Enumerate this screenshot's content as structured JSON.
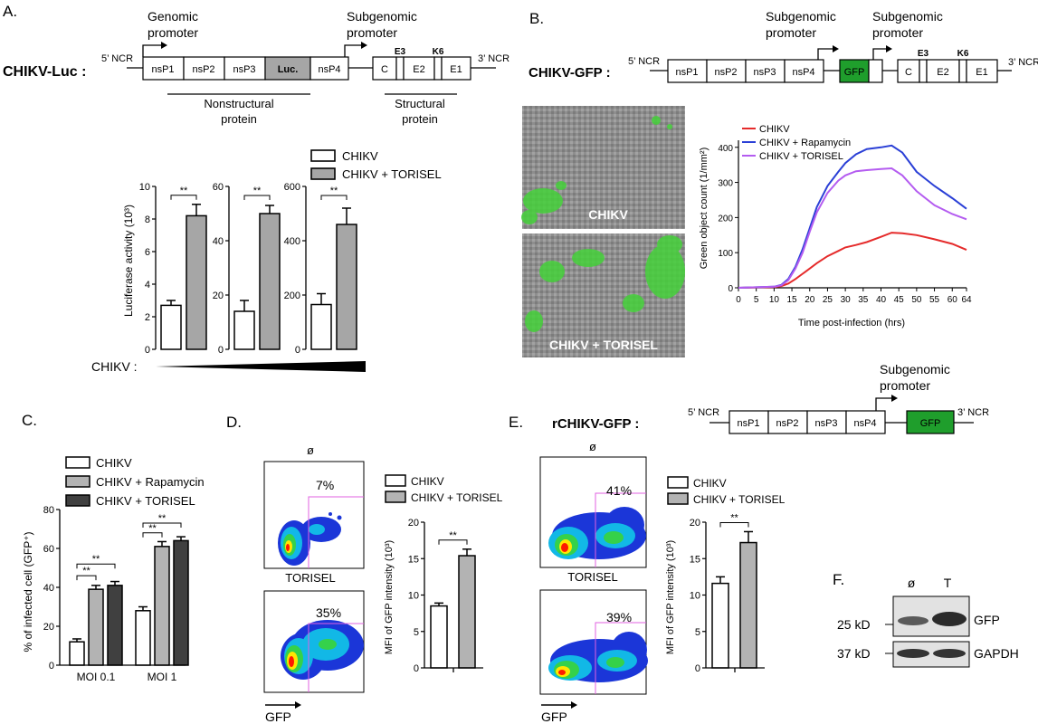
{
  "panels": {
    "A": {
      "letter": "A.",
      "construct": "CHIKV-Luc :",
      "ncr5": "5’ NCR",
      "ncr3": "3’ NCR",
      "genomic_promoter": [
        "Genomic",
        "promoter"
      ],
      "subgenomic_promoter": [
        "Subgenomic",
        "promoter"
      ],
      "ns_genes": [
        "nsP1",
        "nsP2",
        "nsP3",
        "Luc.",
        "nsP4"
      ],
      "s_genes": [
        "C",
        "E2",
        "E1"
      ],
      "s_top_labels": [
        "E3",
        "K6"
      ],
      "nonstructural_label": [
        "Nonstructural",
        "protein"
      ],
      "structural_label": [
        "Structural",
        "protein"
      ],
      "x_axis_label": "CHIKV :",
      "chart_data": {
        "type": "bar",
        "ylabel": "Luciferase activity (10³)",
        "legend": [
          "CHIKV",
          "CHIKV + TORISEL"
        ],
        "significance": "**",
        "subplots": [
          {
            "ylim": [
              0,
              10
            ],
            "ticks": [
              "0",
              "2",
              "4",
              "6",
              "8",
              "10"
            ],
            "values": [
              2.7,
              8.2
            ],
            "errors": [
              0.3,
              0.7
            ]
          },
          {
            "ylim": [
              0,
              60
            ],
            "ticks": [
              "0",
              "20",
              "40",
              "60"
            ],
            "values": [
              14,
              50
            ],
            "errors": [
              4,
              3
            ]
          },
          {
            "ylim": [
              0,
              600
            ],
            "ticks": [
              "0",
              "200",
              "400",
              "600"
            ],
            "values": [
              165,
              460
            ],
            "errors": [
              40,
              60
            ]
          }
        ]
      }
    },
    "B": {
      "letter": "B.",
      "construct": "CHIKV-GFP :",
      "ncr5": "5’ NCR",
      "ncr3": "3’ NCR",
      "promoter1": [
        "Subgenomic",
        "promoter"
      ],
      "promoter2": [
        "Subgenomic",
        "promoter"
      ],
      "ns_genes": [
        "nsP1",
        "nsP2",
        "nsP3",
        "nsP4"
      ],
      "gfp": "GFP",
      "s_genes": [
        "C",
        "E2",
        "E1"
      ],
      "s_top_labels": [
        "E3",
        "K6"
      ],
      "micro_top_label": "CHIKV",
      "micro_bottom_label": "CHIKV + TORISEL",
      "chart_data": {
        "type": "line",
        "xlabel": "Time post-infection (hrs)",
        "ylabel": "Green object count (1/mm²)",
        "xlim": [
          0,
          64
        ],
        "ylim": [
          0,
          420
        ],
        "xticks": [
          "0",
          "5",
          "10",
          "15",
          "20",
          "25",
          "30",
          "35",
          "40",
          "45",
          "50",
          "55",
          "60",
          "64"
        ],
        "yticks": [
          "0",
          "100",
          "200",
          "300",
          "400"
        ],
        "legend_position": "top-left",
        "series": [
          {
            "name": "CHIKV",
            "color": "#e52b2b",
            "x": [
              0,
              10,
              12,
              14,
              16,
              18,
              20,
              22,
              25,
              28,
              30,
              33,
              36,
              40,
              43,
              46,
              50,
              55,
              60,
              64
            ],
            "y": [
              0,
              2,
              5,
              12,
              25,
              40,
              55,
              70,
              90,
              105,
              115,
              122,
              130,
              145,
              157,
              155,
              150,
              138,
              125,
              108
            ]
          },
          {
            "name": "CHIKV + Rapamycin",
            "color": "#2a3fd6",
            "x": [
              0,
              10,
              12,
              14,
              16,
              18,
              20,
              22,
              25,
              28,
              30,
              33,
              36,
              40,
              43,
              46,
              50,
              55,
              60,
              64
            ],
            "y": [
              0,
              3,
              8,
              25,
              60,
              110,
              170,
              230,
              290,
              330,
              355,
              380,
              395,
              400,
              405,
              385,
              330,
              290,
              255,
              225
            ]
          },
          {
            "name": "CHIKV + TORISEL",
            "color": "#b45cf0",
            "x": [
              0,
              10,
              12,
              14,
              16,
              18,
              20,
              22,
              25,
              28,
              30,
              33,
              36,
              40,
              43,
              46,
              50,
              55,
              60,
              64
            ],
            "y": [
              0,
              3,
              7,
              22,
              55,
              100,
              160,
              215,
              270,
              305,
              320,
              332,
              335,
              338,
              340,
              320,
              275,
              235,
              210,
              195
            ]
          }
        ]
      }
    },
    "C": {
      "letter": "C.",
      "chart_data": {
        "type": "bar",
        "ylabel": "% of infected cell (GFP⁺)",
        "ylim": [
          0,
          80
        ],
        "yticks": [
          "0",
          "20",
          "40",
          "60",
          "80"
        ],
        "categories": [
          "MOI 0.1",
          "MOI 1"
        ],
        "series": [
          {
            "name": "CHIKV",
            "color": "#ffffff",
            "values": [
              12,
              28
            ],
            "errors": [
              1.5,
              2
            ]
          },
          {
            "name": "CHIKV + Rapamycin",
            "color": "#b3b3b3",
            "values": [
              39,
              61
            ],
            "errors": [
              2,
              2.5
            ]
          },
          {
            "name": "CHIKV + TORISEL",
            "color": "#404040",
            "values": [
              41,
              64
            ],
            "errors": [
              2,
              2
            ]
          }
        ],
        "significance": "**"
      }
    },
    "D": {
      "letter": "D.",
      "flow_top_label": "ø",
      "flow_top_pct": "7%",
      "flow_bottom_label": "TORISEL",
      "flow_bottom_pct": "35%",
      "gfp_axis": "GFP",
      "legend": [
        "CHIKV",
        "CHIKV + TORISEL"
      ],
      "chart_data": {
        "type": "bar",
        "ylabel": "MFI of GFP intensity (10³)",
        "ylim": [
          0,
          20
        ],
        "yticks": [
          "0",
          "5",
          "10",
          "15",
          "20"
        ],
        "values": [
          8.5,
          15.4
        ],
        "errors": [
          0.4,
          0.9
        ],
        "significance": "**"
      }
    },
    "E": {
      "letter": "E.",
      "construct": "rCHIKV-GFP :",
      "ncr5": "5’ NCR",
      "ncr3": "3’ NCR",
      "promoter": [
        "Subgenomic",
        "promoter"
      ],
      "ns_genes": [
        "nsP1",
        "nsP2",
        "nsP3",
        "nsP4"
      ],
      "gfp": "GFP",
      "flow_top_label": "ø",
      "flow_top_pct": "41%",
      "flow_bottom_label": "TORISEL",
      "flow_bottom_pct": "39%",
      "gfp_axis": "GFP",
      "legend": [
        "CHIKV",
        "CHIKV + TORISEL"
      ],
      "chart_data": {
        "type": "bar",
        "ylabel": "MFI of GFP intensity (10³)",
        "ylim": [
          0,
          20
        ],
        "yticks": [
          "0",
          "5",
          "10",
          "15",
          "20"
        ],
        "values": [
          11.6,
          17.2
        ],
        "errors": [
          0.9,
          1.5
        ],
        "significance": "**"
      }
    },
    "F": {
      "letter": "F.",
      "lanes": [
        "ø",
        "T"
      ],
      "markers": [
        "25 kD",
        "37 kD"
      ],
      "bands": [
        "GFP",
        "GAPDH"
      ]
    }
  }
}
